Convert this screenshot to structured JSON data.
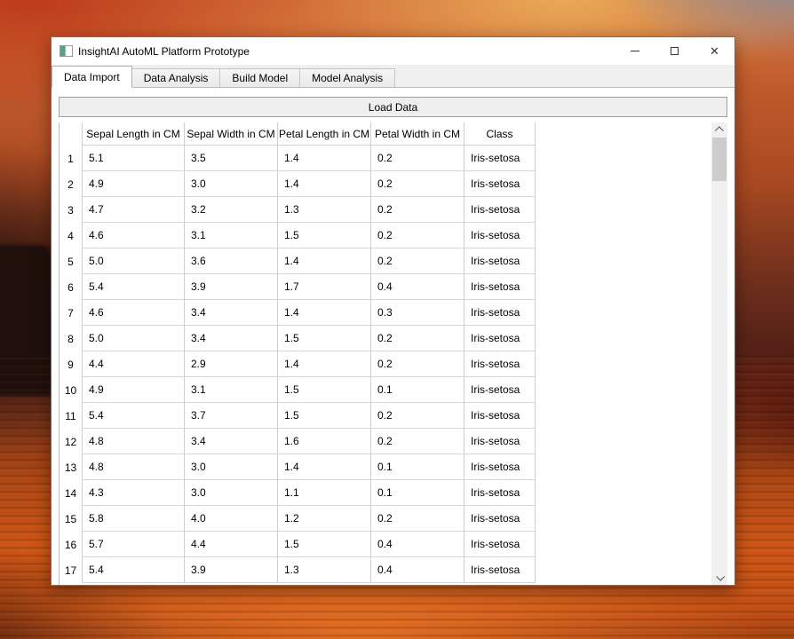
{
  "window": {
    "title": "InsightAI AutoML Platform Prototype",
    "controls": {
      "close_glyph": "✕"
    }
  },
  "tabs": [
    {
      "label": "Data Import",
      "active": true
    },
    {
      "label": "Data Analysis",
      "active": false
    },
    {
      "label": "Build Model",
      "active": false
    },
    {
      "label": "Model Analysis",
      "active": false
    }
  ],
  "toolbar": {
    "load_button": "Load Data"
  },
  "table": {
    "columns": [
      "Sepal Length in CM",
      "Sepal Width in CM",
      "Petal Length in CM",
      "Petal Width in CM",
      "Class"
    ],
    "rows": [
      {
        "n": "1",
        "values": [
          "5.1",
          "3.5",
          "1.4",
          "0.2",
          "Iris-setosa"
        ]
      },
      {
        "n": "2",
        "values": [
          "4.9",
          "3.0",
          "1.4",
          "0.2",
          "Iris-setosa"
        ]
      },
      {
        "n": "3",
        "values": [
          "4.7",
          "3.2",
          "1.3",
          "0.2",
          "Iris-setosa"
        ]
      },
      {
        "n": "4",
        "values": [
          "4.6",
          "3.1",
          "1.5",
          "0.2",
          "Iris-setosa"
        ]
      },
      {
        "n": "5",
        "values": [
          "5.0",
          "3.6",
          "1.4",
          "0.2",
          "Iris-setosa"
        ]
      },
      {
        "n": "6",
        "values": [
          "5.4",
          "3.9",
          "1.7",
          "0.4",
          "Iris-setosa"
        ]
      },
      {
        "n": "7",
        "values": [
          "4.6",
          "3.4",
          "1.4",
          "0.3",
          "Iris-setosa"
        ]
      },
      {
        "n": "8",
        "values": [
          "5.0",
          "3.4",
          "1.5",
          "0.2",
          "Iris-setosa"
        ]
      },
      {
        "n": "9",
        "values": [
          "4.4",
          "2.9",
          "1.4",
          "0.2",
          "Iris-setosa"
        ]
      },
      {
        "n": "10",
        "values": [
          "4.9",
          "3.1",
          "1.5",
          "0.1",
          "Iris-setosa"
        ]
      },
      {
        "n": "11",
        "values": [
          "5.4",
          "3.7",
          "1.5",
          "0.2",
          "Iris-setosa"
        ]
      },
      {
        "n": "12",
        "values": [
          "4.8",
          "3.4",
          "1.6",
          "0.2",
          "Iris-setosa"
        ]
      },
      {
        "n": "13",
        "values": [
          "4.8",
          "3.0",
          "1.4",
          "0.1",
          "Iris-setosa"
        ]
      },
      {
        "n": "14",
        "values": [
          "4.3",
          "3.0",
          "1.1",
          "0.1",
          "Iris-setosa"
        ]
      },
      {
        "n": "15",
        "values": [
          "5.8",
          "4.0",
          "1.2",
          "0.2",
          "Iris-setosa"
        ]
      },
      {
        "n": "16",
        "values": [
          "5.7",
          "4.4",
          "1.5",
          "0.4",
          "Iris-setosa"
        ]
      },
      {
        "n": "17",
        "values": [
          "5.4",
          "3.9",
          "1.3",
          "0.4",
          "Iris-setosa"
        ]
      }
    ]
  }
}
